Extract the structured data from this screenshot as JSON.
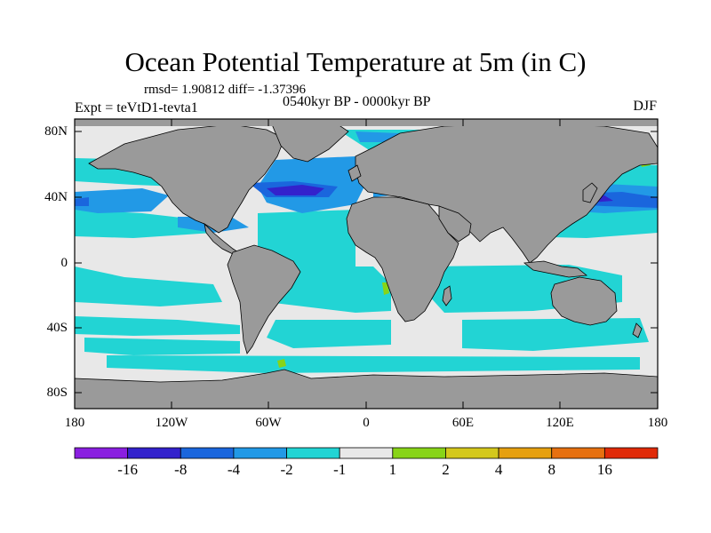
{
  "title": "Ocean Potential Temperature at 5m (in C)",
  "stats": "rmsd= 1.90812 diff= -1.37396",
  "subtitle_left": "Expt = teVtD1-tevta1",
  "subtitle_center": "0540kyr BP - 0000kyr BP",
  "subtitle_right": "DJF",
  "lat_labels": [
    "80N",
    "40N",
    "0",
    "40S",
    "80S"
  ],
  "lon_labels": [
    "180",
    "120W",
    "60W",
    "0",
    "60E",
    "120E",
    "180"
  ],
  "colorbar": {
    "labels": [
      "-16",
      "-8",
      "-4",
      "-2",
      "-1",
      "1",
      "2",
      "4",
      "8",
      "16"
    ],
    "colors": [
      "#8a1fe0",
      "#3322cc",
      "#1a66dd",
      "#2299e6",
      "#22d4d4",
      "#e8e8e8",
      "#88d418",
      "#d4c81c",
      "#e6a010",
      "#e67010",
      "#e02a08"
    ]
  },
  "colors": {
    "land": "#9a9a9a",
    "ocean_neutral": "#e8e8e8",
    "cool_1": "#22d4d4",
    "cool_2": "#2299e6",
    "cool_3": "#1a66dd",
    "cool_4": "#3322cc",
    "warm_1": "#88d418"
  }
}
